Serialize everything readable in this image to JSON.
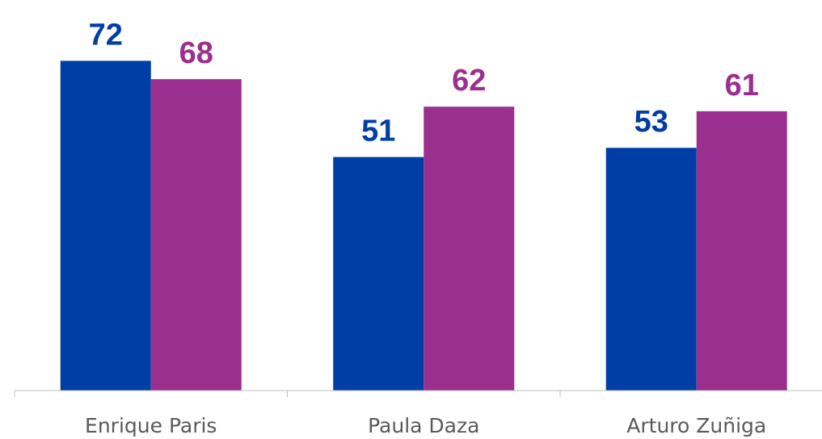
{
  "chart_data": {
    "type": "bar",
    "categories": [
      "Enrique Paris",
      "Paula Daza",
      "Arturo Zuñiga"
    ],
    "series": [
      {
        "color": "#003da5",
        "values": [
          72,
          51,
          53
        ]
      },
      {
        "color": "#9b2f8f",
        "values": [
          68,
          62,
          61
        ]
      }
    ],
    "ylim": [
      0,
      80
    ]
  }
}
